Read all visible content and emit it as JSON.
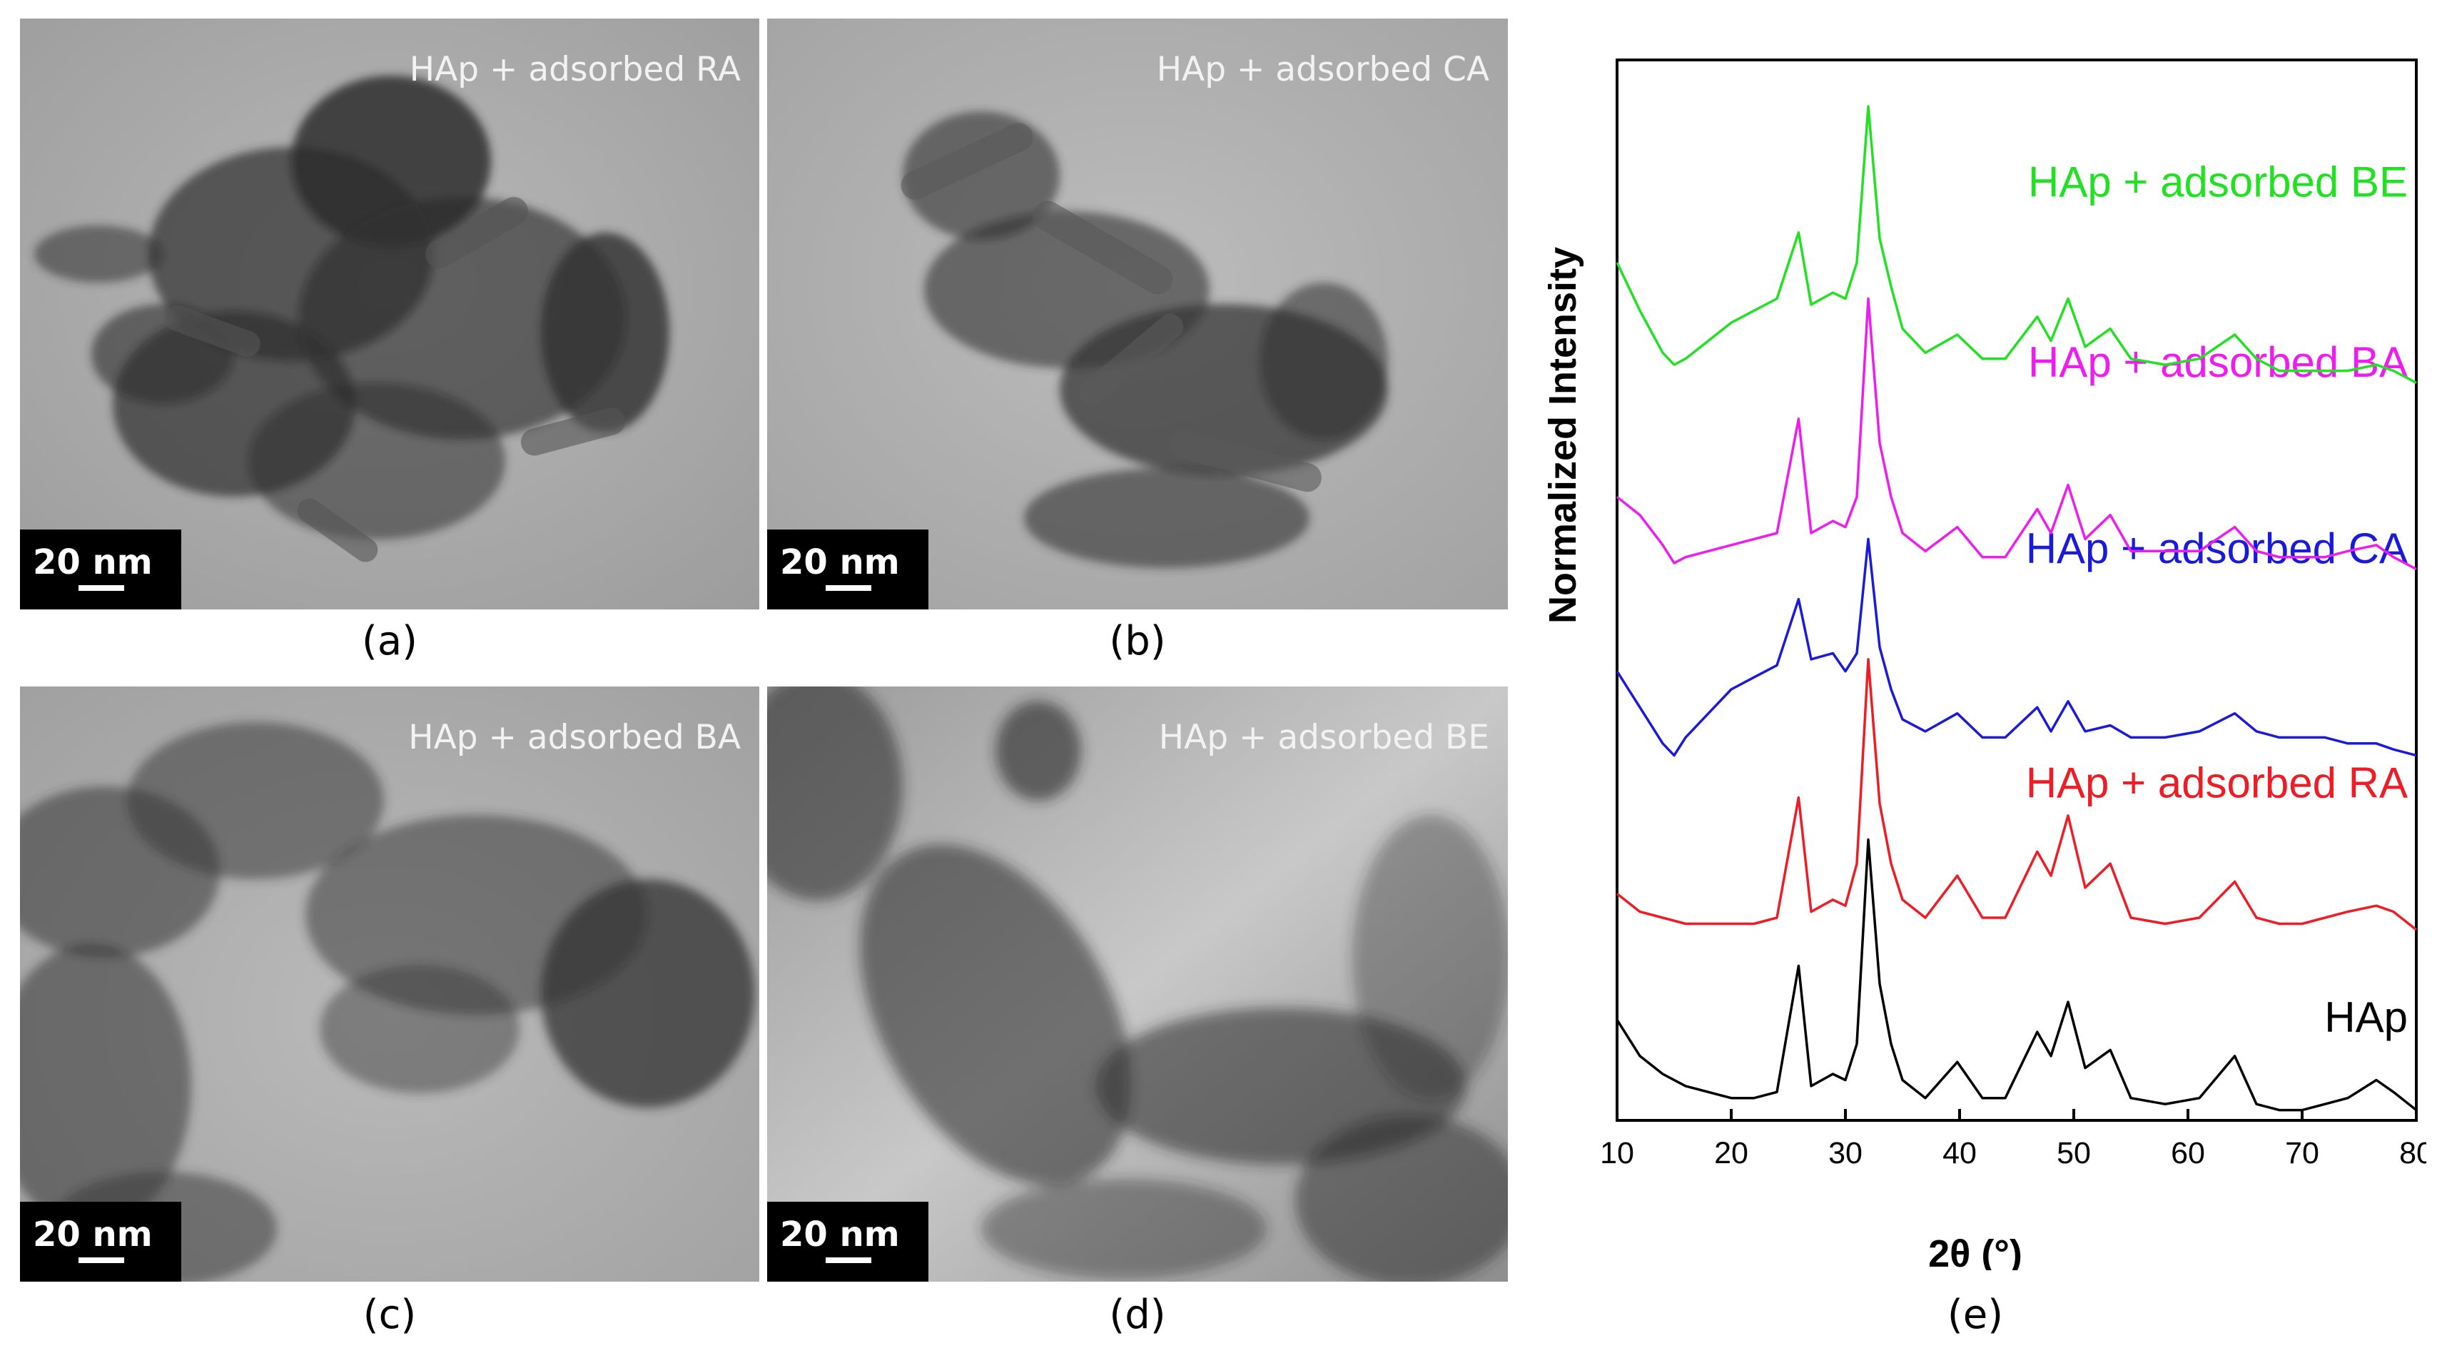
{
  "panels": [
    {
      "id": "a",
      "title": "HAp + adsorbed RA",
      "scale_label": "20 nm",
      "caption": "(a)"
    },
    {
      "id": "b",
      "title": "HAp + adsorbed CA",
      "scale_label": "20 nm",
      "caption": "(b)"
    },
    {
      "id": "c",
      "title": "HAp + adsorbed BA",
      "scale_label": "20 nm",
      "caption": "(c)"
    },
    {
      "id": "d",
      "title": "HAp + adsorbed BE",
      "scale_label": "20 nm",
      "caption": "(d)"
    }
  ],
  "chart_caption": "(e)",
  "chart_data": {
    "type": "line",
    "xlabel": "2θ (°)",
    "ylabel": "Normalized Intensity",
    "xlim": [
      10,
      80
    ],
    "xticks": [
      10,
      20,
      30,
      40,
      50,
      60,
      70,
      80
    ],
    "y_ticks_shown": false,
    "peaks_2theta": [
      25.9,
      28.9,
      32.0,
      34.0,
      39.8,
      46.8,
      49.5,
      53.2,
      64.1,
      76.5
    ],
    "series": [
      {
        "name": "HAp",
        "color": "#000000",
        "offset": 0.0,
        "x": [
          10,
          12,
          14,
          16,
          18,
          20,
          22,
          24,
          25.9,
          27,
          28.9,
          30,
          31,
          32.0,
          33,
          34.0,
          35,
          37,
          39.8,
          42,
          44,
          46.8,
          48,
          49.5,
          51,
          53.2,
          55,
          58,
          61,
          64.1,
          66,
          68,
          70,
          72,
          74,
          76.5,
          78,
          80
        ],
        "y": [
          0.16,
          0.1,
          0.07,
          0.05,
          0.04,
          0.03,
          0.03,
          0.04,
          0.25,
          0.05,
          0.07,
          0.06,
          0.12,
          0.46,
          0.22,
          0.12,
          0.06,
          0.03,
          0.09,
          0.03,
          0.03,
          0.14,
          0.1,
          0.19,
          0.08,
          0.11,
          0.03,
          0.02,
          0.03,
          0.1,
          0.02,
          0.01,
          0.01,
          0.02,
          0.03,
          0.06,
          0.04,
          0.01
        ]
      },
      {
        "name": "HAp + adsorbed RA",
        "color": "#ee1c25",
        "offset": 0.3,
        "x": [
          10,
          12,
          14,
          16,
          18,
          20,
          22,
          24,
          25.9,
          27,
          28.9,
          30,
          31,
          32.0,
          33,
          34.0,
          35,
          37,
          39.8,
          42,
          44,
          46.8,
          48,
          49.5,
          51,
          53.2,
          55,
          58,
          61,
          64.1,
          66,
          68,
          70,
          72,
          74,
          76.5,
          78,
          80
        ],
        "y": [
          0.07,
          0.04,
          0.03,
          0.02,
          0.02,
          0.02,
          0.02,
          0.03,
          0.23,
          0.04,
          0.06,
          0.05,
          0.12,
          0.46,
          0.22,
          0.12,
          0.06,
          0.03,
          0.1,
          0.03,
          0.03,
          0.14,
          0.1,
          0.2,
          0.08,
          0.12,
          0.03,
          0.02,
          0.03,
          0.09,
          0.03,
          0.02,
          0.02,
          0.03,
          0.04,
          0.05,
          0.04,
          0.01
        ]
      },
      {
        "name": "HAp + adsorbed CA",
        "color": "#1a1adb",
        "offset": 0.6,
        "x": [
          10,
          12,
          14,
          15,
          16,
          18,
          20,
          22,
          24,
          25.9,
          27,
          28.9,
          30,
          31,
          32.0,
          33,
          34.0,
          35,
          37,
          39.8,
          42,
          44,
          46.8,
          48,
          49.5,
          51,
          53.2,
          55,
          58,
          61,
          64.1,
          66,
          68,
          70,
          72,
          74,
          76.5,
          78,
          80
        ],
        "y": [
          0.14,
          0.08,
          0.02,
          0.0,
          0.03,
          0.07,
          0.11,
          0.13,
          0.15,
          0.26,
          0.16,
          0.17,
          0.14,
          0.17,
          0.36,
          0.18,
          0.11,
          0.06,
          0.04,
          0.07,
          0.03,
          0.03,
          0.08,
          0.04,
          0.09,
          0.04,
          0.05,
          0.03,
          0.03,
          0.04,
          0.07,
          0.04,
          0.03,
          0.03,
          0.03,
          0.02,
          0.02,
          0.01,
          0.0
        ]
      },
      {
        "name": "HAp + adsorbed BA",
        "color": "#ee1cee",
        "offset": 0.9,
        "x": [
          10,
          12,
          14,
          15,
          16,
          18,
          20,
          22,
          24,
          25.9,
          27,
          28.9,
          30,
          31,
          32.0,
          33,
          34.0,
          35,
          37,
          39.8,
          42,
          44,
          46.8,
          48,
          49.5,
          51,
          53.2,
          55,
          58,
          61,
          64.1,
          66,
          68,
          70,
          72,
          74,
          76.5,
          78,
          80
        ],
        "y": [
          0.13,
          0.1,
          0.05,
          0.02,
          0.03,
          0.04,
          0.05,
          0.06,
          0.07,
          0.26,
          0.07,
          0.09,
          0.08,
          0.13,
          0.46,
          0.22,
          0.13,
          0.07,
          0.04,
          0.08,
          0.03,
          0.03,
          0.11,
          0.07,
          0.15,
          0.06,
          0.1,
          0.04,
          0.04,
          0.04,
          0.08,
          0.04,
          0.03,
          0.03,
          0.03,
          0.04,
          0.05,
          0.03,
          0.01
        ]
      },
      {
        "name": "HAp + adsorbed BE",
        "color": "#22e022",
        "offset": 1.2,
        "x": [
          10,
          12,
          14,
          15,
          16,
          18,
          20,
          22,
          24,
          25.9,
          27,
          28.9,
          30,
          31,
          32.0,
          33,
          34.0,
          35,
          37,
          39.8,
          42,
          44,
          46.8,
          48,
          49.5,
          51,
          53.2,
          55,
          58,
          61,
          64.1,
          66,
          68,
          70,
          72,
          74,
          76.5,
          78,
          80
        ],
        "y": [
          0.22,
          0.14,
          0.07,
          0.05,
          0.06,
          0.09,
          0.12,
          0.14,
          0.16,
          0.27,
          0.15,
          0.17,
          0.16,
          0.22,
          0.48,
          0.26,
          0.18,
          0.11,
          0.07,
          0.1,
          0.06,
          0.06,
          0.13,
          0.09,
          0.16,
          0.08,
          0.11,
          0.06,
          0.05,
          0.06,
          0.1,
          0.06,
          0.04,
          0.04,
          0.04,
          0.04,
          0.05,
          0.04,
          0.02
        ]
      }
    ]
  }
}
